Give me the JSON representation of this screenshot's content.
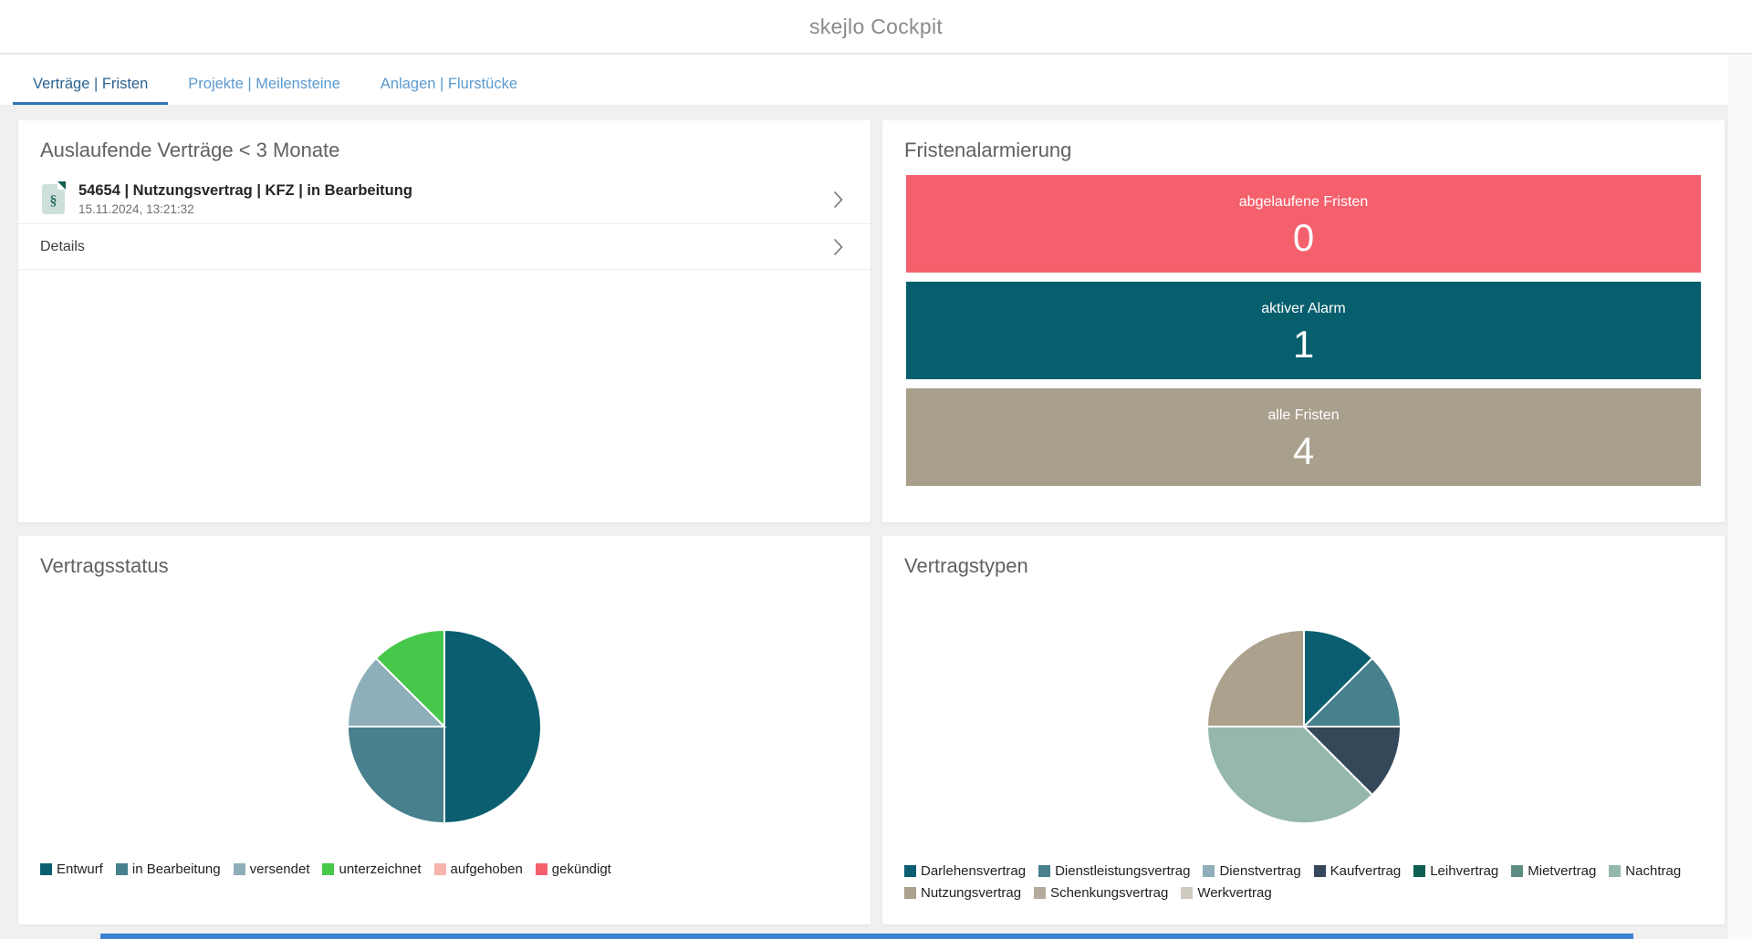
{
  "app": {
    "title": "skejlo Cockpit"
  },
  "tabs": [
    {
      "label": "Verträge | Fristen",
      "active": true
    },
    {
      "label": "Projekte | Meilensteine",
      "active": false
    },
    {
      "label": "Anlagen | Flurstücke",
      "active": false
    }
  ],
  "expiring": {
    "title": "Auslaufende Verträge < 3 Monate",
    "item": {
      "icon": "contract-document-icon",
      "icon_glyph": "§",
      "title": "54654 | Nutzungsvertrag | KFZ | in Bearbeitung",
      "timestamp": "15.11.2024, 13:21:32"
    },
    "details_label": "Details",
    "row_icon": "chevron-right-icon"
  },
  "alerts": {
    "title": "Fristenalarmierung",
    "bars": [
      {
        "label": "abgelaufene Fristen",
        "value": "0",
        "color": "#f4616d"
      },
      {
        "label": "aktiver Alarm",
        "value": "1",
        "color": "#075f6e"
      },
      {
        "label": "alle Fristen",
        "value": "4",
        "color": "#a89f8d"
      }
    ]
  },
  "chart_data": [
    {
      "type": "pie",
      "title": "Vertragsstatus",
      "legend_position": "bottom-left",
      "start_angle_deg": 0,
      "direction": "clockwise",
      "slices": [
        {
          "label": "Entwurf",
          "value": 4,
          "percent": 50,
          "color": "#0a5e70"
        },
        {
          "label": "in Bearbeitung",
          "value": 2,
          "percent": 25,
          "color": "#48808d"
        },
        {
          "label": "versendet",
          "value": 1,
          "percent": 12.5,
          "color": "#8eafba"
        },
        {
          "label": "unterzeichnet",
          "value": 1,
          "percent": 12.5,
          "color": "#46c84a"
        },
        {
          "label": "aufgehoben",
          "value": 0,
          "percent": 0,
          "color": "#f6b4ad"
        },
        {
          "label": "gekündigt",
          "value": 0,
          "percent": 0,
          "color": "#f4616d"
        }
      ]
    },
    {
      "type": "pie",
      "title": "Vertragstypen",
      "legend_position": "bottom-left",
      "start_angle_deg": 0,
      "direction": "clockwise",
      "slices": [
        {
          "label": "Darlehensvertrag",
          "value": 1,
          "percent": 12.5,
          "color": "#0a5e70"
        },
        {
          "label": "Dienstleistungsvertrag",
          "value": 1,
          "percent": 12.5,
          "color": "#48808d"
        },
        {
          "label": "Dienstvertrag",
          "value": 0,
          "percent": 0,
          "color": "#8eafba"
        },
        {
          "label": "Kaufvertrag",
          "value": 1,
          "percent": 12.5,
          "color": "#34485a"
        },
        {
          "label": "Leihvertrag",
          "value": 0,
          "percent": 0,
          "color": "#0e6054"
        },
        {
          "label": "Mietvertrag",
          "value": 0,
          "percent": 0,
          "color": "#5d8d82"
        },
        {
          "label": "Nachtrag",
          "value": 3,
          "percent": 37.5,
          "color": "#95b7ae"
        },
        {
          "label": "Nutzungsvertrag",
          "value": 2,
          "percent": 25,
          "color": "#aba18d"
        },
        {
          "label": "Schenkungsvertrag",
          "value": 0,
          "percent": 0,
          "color": "#b3ab9b"
        },
        {
          "label": "Werkvertrag",
          "value": 0,
          "percent": 0,
          "color": "#cfcabf"
        }
      ]
    }
  ]
}
